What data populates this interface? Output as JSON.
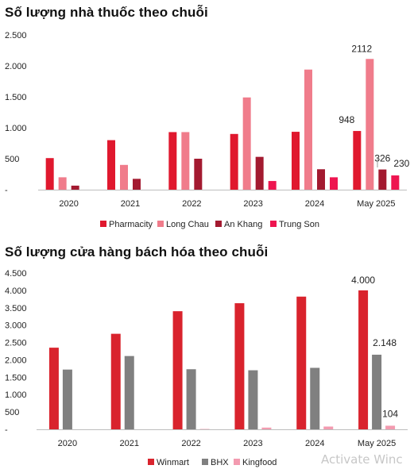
{
  "titles": {
    "chart1": "Số lượng nhà thuốc theo chuỗi",
    "chart2": "Số lượng cửa hàng bách hóa theo chuỗi"
  },
  "watermark": "Activate Winc",
  "chart_data": [
    {
      "type": "bar",
      "title": "Số lượng nhà thuốc theo chuỗi",
      "categories": [
        "2020",
        "2021",
        "2022",
        "2023",
        "2024",
        "May 2025"
      ],
      "series": [
        {
          "name": "Pharmacity",
          "color": "#e0182e",
          "values": [
            510,
            800,
            930,
            900,
            935,
            948
          ]
        },
        {
          "name": "Long Chau",
          "color": "#f07c8b",
          "values": [
            200,
            400,
            930,
            1490,
            1940,
            2112
          ]
        },
        {
          "name": "An Khang",
          "color": "#a31a30",
          "values": [
            65,
            175,
            500,
            530,
            330,
            326
          ]
        },
        {
          "name": "Trung Son",
          "color": "#ee1550",
          "values": [
            0,
            0,
            0,
            140,
            200,
            230
          ]
        }
      ],
      "y_ticks": [
        "2.500",
        "2.000",
        "1.500",
        "1.000",
        "500",
        "-"
      ],
      "ylim": [
        0,
        2500
      ],
      "data_labels": [
        {
          "series": 0,
          "index": 5,
          "text": "948"
        },
        {
          "series": 1,
          "index": 5,
          "text": "2112"
        },
        {
          "series": 2,
          "index": 5,
          "text": "326"
        },
        {
          "series": 3,
          "index": 5,
          "text": "230"
        }
      ],
      "legend": "bottom"
    },
    {
      "type": "bar",
      "title": "Số lượng cửa hàng bách hóa theo chuỗi",
      "categories": [
        "2020",
        "2021",
        "2022",
        "2023",
        "2024",
        "May 2025"
      ],
      "series": [
        {
          "name": "Winmart",
          "color": "#d9232d",
          "values": [
            2350,
            2750,
            3400,
            3630,
            3820,
            4000
          ]
        },
        {
          "name": "BHX",
          "color": "#808080",
          "values": [
            1720,
            2110,
            1730,
            1700,
            1770,
            2148
          ]
        },
        {
          "name": "Kingfood",
          "color": "#f39bb0",
          "values": [
            0,
            0,
            10,
            50,
            80,
            104
          ]
        }
      ],
      "y_ticks": [
        "4.500",
        "4.000",
        "3.500",
        "3.000",
        "2.500",
        "2.000",
        "1.500",
        "1.000",
        "500",
        "-"
      ],
      "ylim": [
        0,
        4500
      ],
      "data_labels": [
        {
          "series": 0,
          "index": 5,
          "text": "4.000"
        },
        {
          "series": 1,
          "index": 5,
          "text": "2.148"
        },
        {
          "series": 2,
          "index": 5,
          "text": "104"
        }
      ],
      "legend": "bottom"
    }
  ]
}
